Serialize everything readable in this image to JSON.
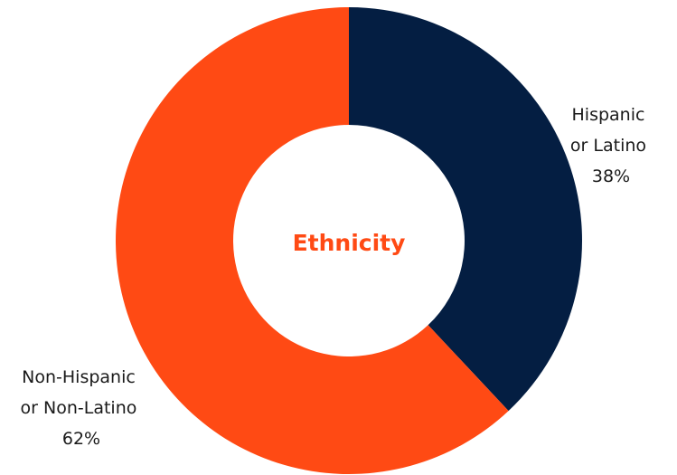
{
  "chart_data": {
    "type": "pie",
    "variant": "donut",
    "title": "Ethnicity",
    "title_color": "#ff4a14",
    "categories": [
      "Hispanic or Latino",
      "Non-Hispanic or Non-Latino"
    ],
    "values": [
      38,
      62
    ],
    "colors": [
      "#041e42",
      "#ff4a14"
    ],
    "labels": [
      {
        "lines": [
          "Hispanic",
          "or Latino"
        ],
        "value_text": "38%"
      },
      {
        "lines": [
          "Non-Hispanic",
          "or Non-Latino"
        ],
        "value_text": "62%"
      }
    ],
    "legend": "none"
  }
}
